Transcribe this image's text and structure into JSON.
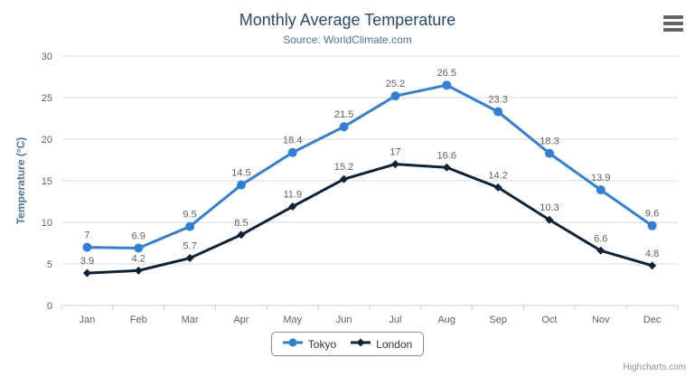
{
  "header": {
    "title": "Monthly Average Temperature",
    "subtitle": "Source: WorldClimate.com"
  },
  "export_menu": {
    "icon": "hamburger-icon"
  },
  "chart_data": {
    "type": "line",
    "title": "Monthly Average Temperature",
    "subtitle": "Source: WorldClimate.com",
    "categories": [
      "Jan",
      "Feb",
      "Mar",
      "Apr",
      "May",
      "Jun",
      "Jul",
      "Aug",
      "Sep",
      "Oct",
      "Nov",
      "Dec"
    ],
    "series": [
      {
        "name": "Tokyo",
        "color": "#2f7ed8",
        "marker": "circle",
        "values": [
          7,
          6.9,
          9.5,
          14.5,
          18.4,
          21.5,
          25.2,
          26.5,
          23.3,
          18.3,
          13.9,
          9.6
        ]
      },
      {
        "name": "London",
        "color": "#0d233a",
        "marker": "diamond",
        "values": [
          3.9,
          4.2,
          5.7,
          8.5,
          11.9,
          15.2,
          17,
          16.6,
          14.2,
          10.3,
          6.6,
          4.8
        ]
      }
    ],
    "xlabel": "",
    "ylabel": "Temperature (°C)",
    "ylim": [
      0,
      30
    ],
    "yticks": [
      0,
      5,
      10,
      15,
      20,
      25,
      30
    ],
    "grid": true,
    "data_labels": true,
    "legend_position": "bottom"
  },
  "colors": {
    "title": "#274b6d",
    "subtitle": "#4d759e",
    "axis_title": "#4d759e",
    "axis_label": "#606060",
    "data_label": "#606060",
    "axis_line": "#c0d0e0",
    "gridline": "#d8d8d8",
    "legend_border": "#909090",
    "legend_text": "#333333",
    "credits": "#909090"
  },
  "credits": {
    "label": "Highcharts.com"
  }
}
